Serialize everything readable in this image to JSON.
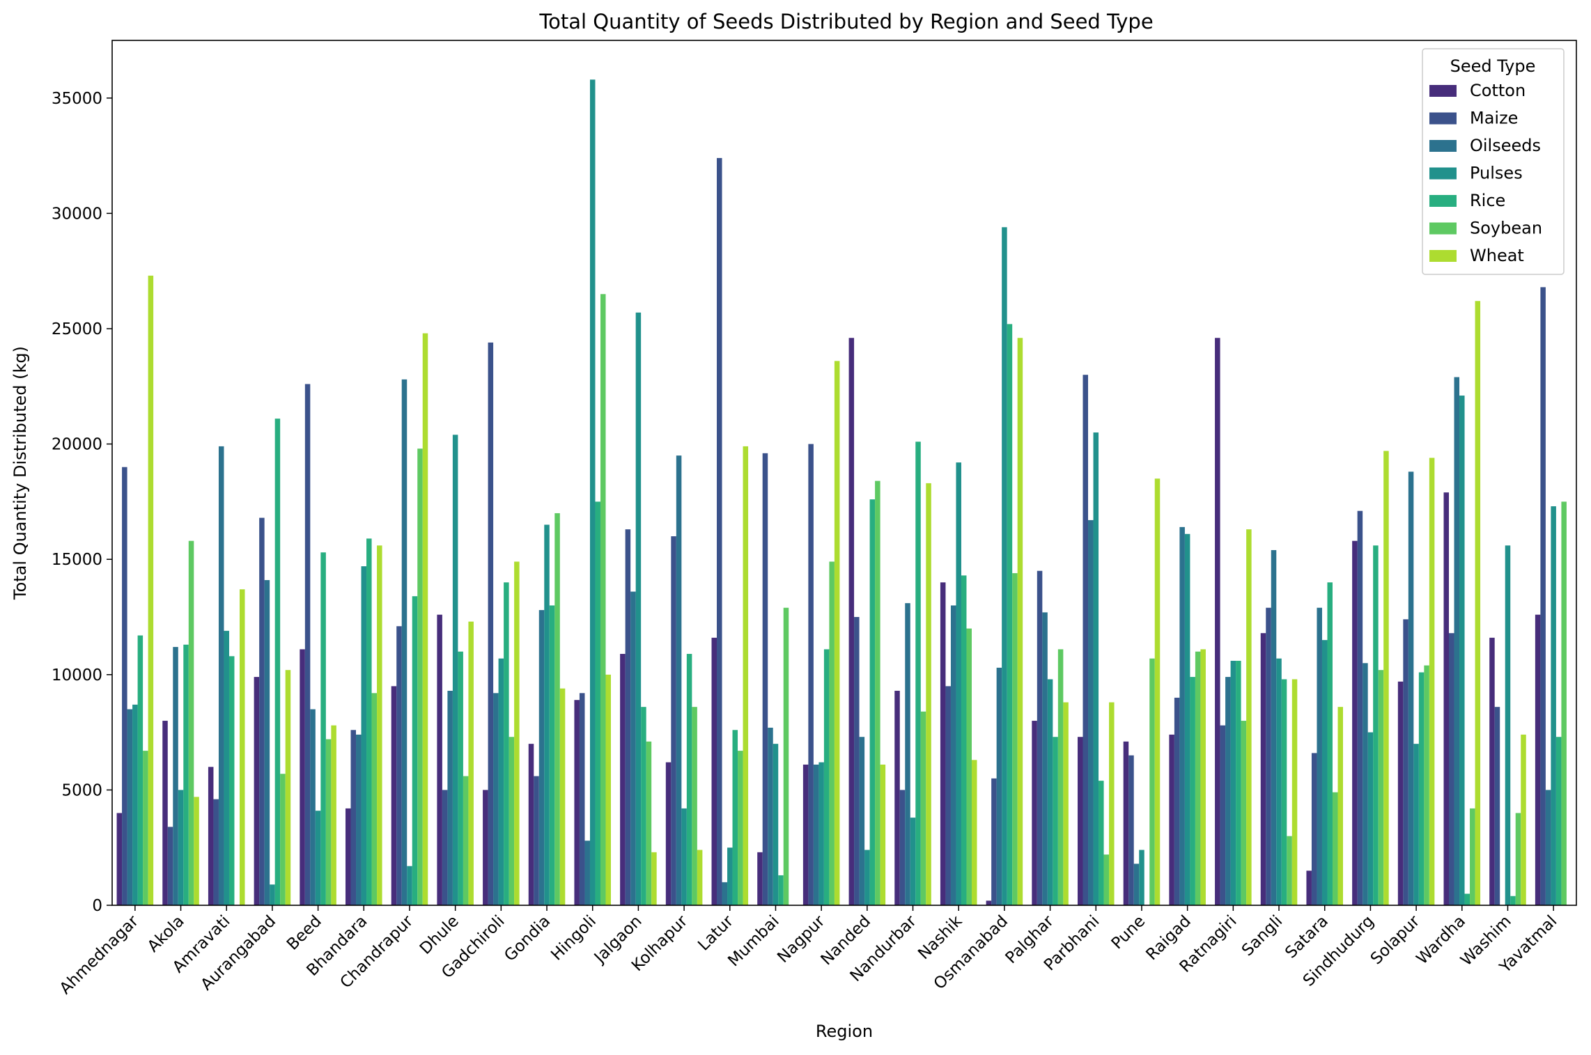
{
  "chart_data": {
    "type": "bar",
    "title": "Total Quantity of Seeds Distributed by Region and Seed Type",
    "xlabel": "Region",
    "ylabel": "Total Quantity Distributed (kg)",
    "ylim": [
      0,
      37500
    ],
    "yticks": [
      0,
      5000,
      10000,
      15000,
      20000,
      25000,
      30000,
      35000
    ],
    "grid": false,
    "legend": {
      "title": "Seed Type",
      "placement": "top-right"
    },
    "categories": [
      "Ahmednagar",
      "Akola",
      "Amravati",
      "Aurangabad",
      "Beed",
      "Bhandara",
      "Chandrapur",
      "Dhule",
      "Gadchiroli",
      "Gondia",
      "Hingoli",
      "Jalgaon",
      "Kolhapur",
      "Latur",
      "Mumbai",
      "Nagpur",
      "Nanded",
      "Nandurbar",
      "Nashik",
      "Osmanabad",
      "Palghar",
      "Parbhani",
      "Pune",
      "Raigad",
      "Ratnagiri",
      "Sangli",
      "Satara",
      "Sindhudurg",
      "Solapur",
      "Wardha",
      "Washim",
      "Yavatmal"
    ],
    "series": [
      {
        "name": "Cotton",
        "color": "#472d7b",
        "values": [
          4000,
          8000,
          6000,
          9900,
          11100,
          4200,
          9500,
          12600,
          5000,
          7000,
          8900,
          10900,
          6200,
          11600,
          2300,
          6100,
          24600,
          9300,
          14000,
          200,
          8000,
          7300,
          7100,
          7400,
          24600,
          11800,
          1500,
          15800,
          9700,
          17900,
          11600,
          12600
        ]
      },
      {
        "name": "Maize",
        "color": "#3b528b",
        "values": [
          19000,
          3400,
          4600,
          16800,
          22600,
          7600,
          12100,
          5000,
          24400,
          5600,
          9200,
          16300,
          16000,
          32400,
          19600,
          20000,
          12500,
          5000,
          9500,
          5500,
          14500,
          23000,
          6500,
          9000,
          7800,
          12900,
          6600,
          17100,
          12400,
          11800,
          8600,
          26800
        ]
      },
      {
        "name": "Oilseeds",
        "color": "#2c728e",
        "values": [
          8500,
          11200,
          19900,
          14100,
          8500,
          7400,
          22800,
          9300,
          9200,
          12800,
          2800,
          13600,
          19500,
          1000,
          7700,
          6100,
          7300,
          13100,
          13000,
          10300,
          12700,
          16700,
          1800,
          16400,
          9900,
          15400,
          12900,
          10500,
          18800,
          22900,
          0,
          5000
        ]
      },
      {
        "name": "Pulses",
        "color": "#21918c",
        "values": [
          8700,
          5000,
          11900,
          900,
          4100,
          14700,
          1700,
          20400,
          10700,
          16500,
          35800,
          25700,
          4200,
          2500,
          7000,
          6200,
          2400,
          3800,
          19200,
          29400,
          9800,
          20500,
          2400,
          16100,
          10600,
          10700,
          11500,
          7500,
          7000,
          22100,
          15600,
          17300
        ]
      },
      {
        "name": "Rice",
        "color": "#28ae80",
        "values": [
          11700,
          11300,
          10800,
          21100,
          15300,
          15900,
          13400,
          11000,
          14000,
          13000,
          17500,
          8600,
          10900,
          7600,
          1300,
          11100,
          17600,
          20100,
          14300,
          25200,
          7300,
          5400,
          0,
          9900,
          10600,
          9800,
          14000,
          15600,
          10100,
          500,
          400,
          7300
        ]
      },
      {
        "name": "Soybean",
        "color": "#5ec962",
        "values": [
          6700,
          15800,
          0,
          5700,
          7200,
          9200,
          19800,
          5600,
          7300,
          17000,
          26500,
          7100,
          8600,
          6700,
          12900,
          14900,
          18400,
          8400,
          12000,
          14400,
          11100,
          2200,
          10700,
          11000,
          8000,
          3000,
          4900,
          10200,
          10400,
          4200,
          4000,
          17500
        ]
      },
      {
        "name": "Wheat",
        "color": "#addc30",
        "values": [
          27300,
          4700,
          13700,
          10200,
          7800,
          15600,
          24800,
          12300,
          14900,
          9400,
          10000,
          2300,
          2400,
          19900,
          0,
          23600,
          6100,
          18300,
          6300,
          24600,
          8800,
          8800,
          18500,
          11100,
          16300,
          9800,
          8600,
          19700,
          19400,
          26200,
          7400,
          0
        ]
      }
    ]
  }
}
